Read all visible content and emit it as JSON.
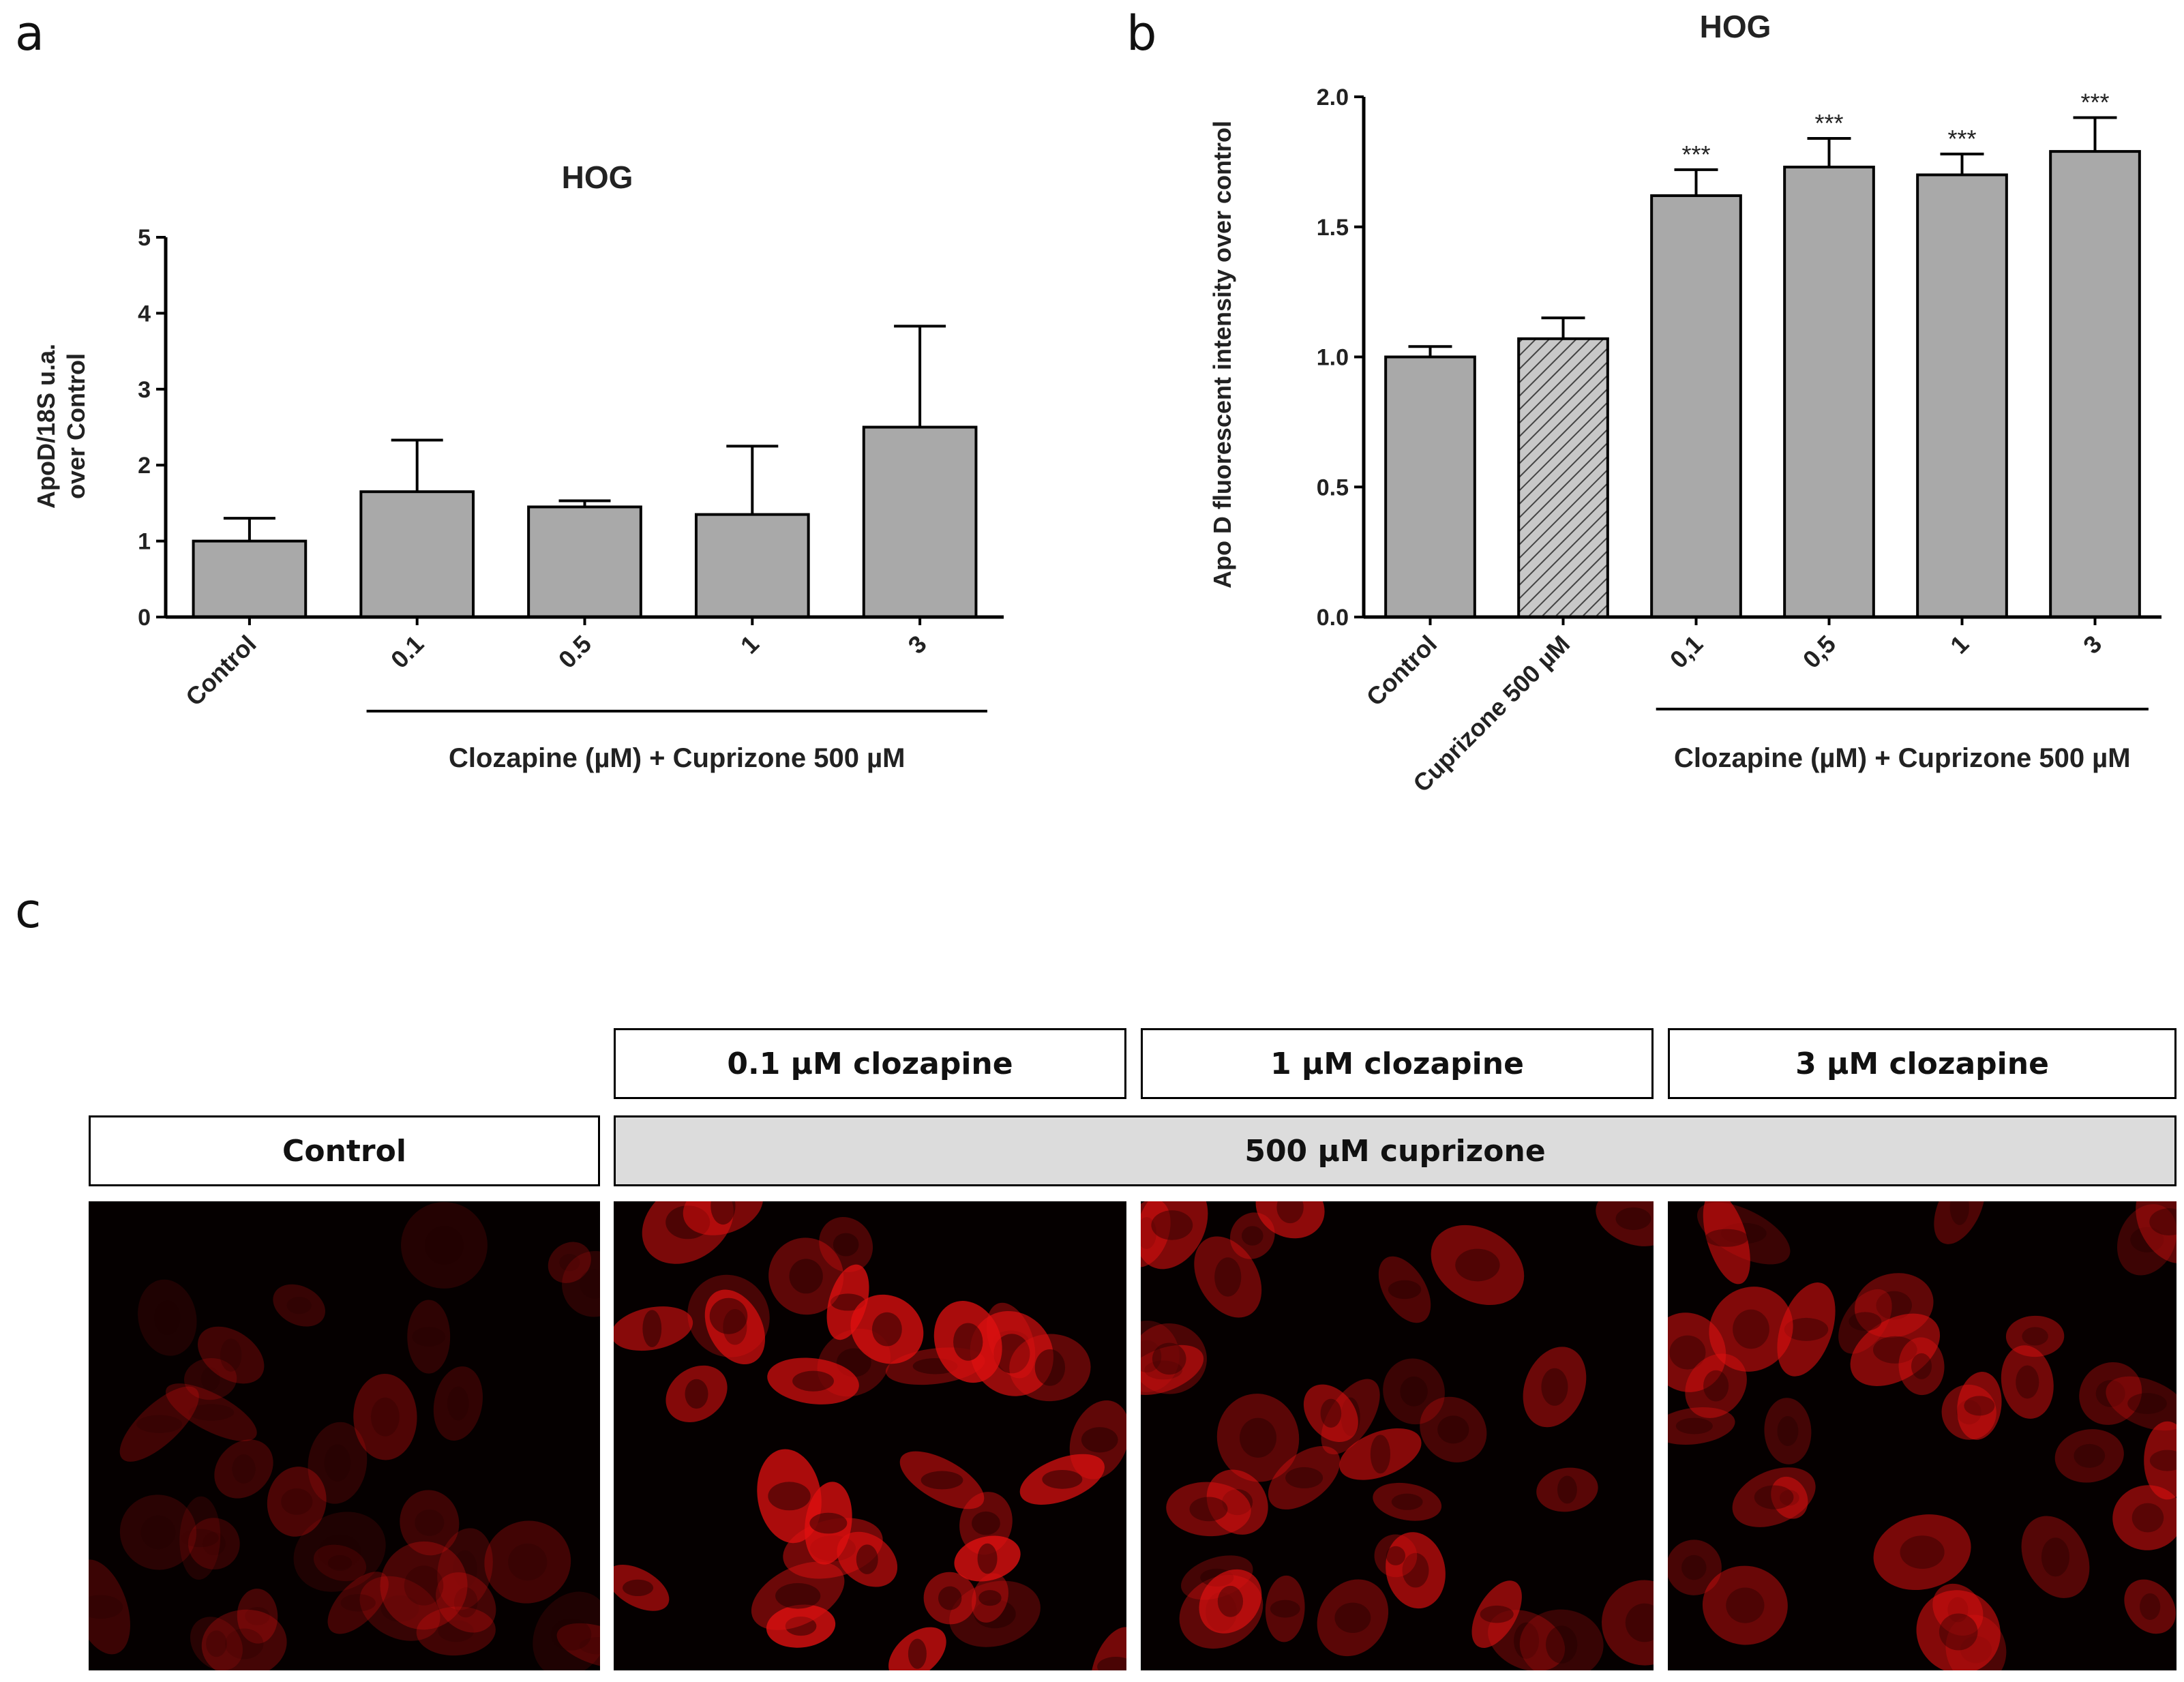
{
  "panel_letters": {
    "a": "a",
    "b": "b",
    "c": "c"
  },
  "chart_data": [
    {
      "type": "bar",
      "panel": "a",
      "title": "HOG",
      "ylabel_line1": "ApoD/18S u.a.",
      "ylabel_line2": "over Control",
      "xlabel": "Clozapine (µM) + Cuprizone 500 µM",
      "categories": [
        "Control",
        "0.1",
        "0.5",
        "1",
        "3"
      ],
      "values": [
        1.0,
        1.65,
        1.45,
        1.35,
        2.5
      ],
      "errors": [
        0.3,
        0.68,
        0.08,
        0.9,
        1.33
      ],
      "annotations": [
        "",
        "",
        "",
        "",
        ""
      ],
      "hatched": [
        false,
        false,
        false,
        false,
        false
      ],
      "ylim": [
        0,
        5
      ],
      "yticks": [
        "0",
        "1",
        "2",
        "3",
        "4",
        "5"
      ],
      "bar_color": "#a9a9a9"
    },
    {
      "type": "bar",
      "panel": "b",
      "title": "HOG",
      "ylabel_line1": "Apo D fluorescent intensity over control",
      "ylabel_line2": "",
      "xlabel": "Clozapine (µM) + Cuprizone 500 µM",
      "categories": [
        "Control",
        "Cuprizone 500 µM",
        "0,1",
        "0,5",
        "1",
        "3"
      ],
      "values": [
        1.0,
        1.07,
        1.62,
        1.73,
        1.7,
        1.79
      ],
      "errors": [
        0.04,
        0.08,
        0.1,
        0.11,
        0.08,
        0.13
      ],
      "annotations": [
        "",
        "",
        "***",
        "***",
        "***",
        "***"
      ],
      "hatched": [
        false,
        true,
        false,
        false,
        false,
        false
      ],
      "ylim": [
        0,
        2.0
      ],
      "yticks": [
        "0.0",
        "0.5",
        "1.0",
        "1.5",
        "2.0"
      ],
      "bar_color": "#a9a9a9"
    }
  ],
  "micrographs": {
    "top_labels": [
      "0.1 µM clozapine",
      "1 µM clozapine",
      "3 µM clozapine"
    ],
    "control_label": "Control",
    "cuprizone_label": "500 µM cuprizone",
    "stain_color": "#e01010",
    "brightness": [
      0.45,
      1.0,
      0.85,
      0.75
    ]
  }
}
